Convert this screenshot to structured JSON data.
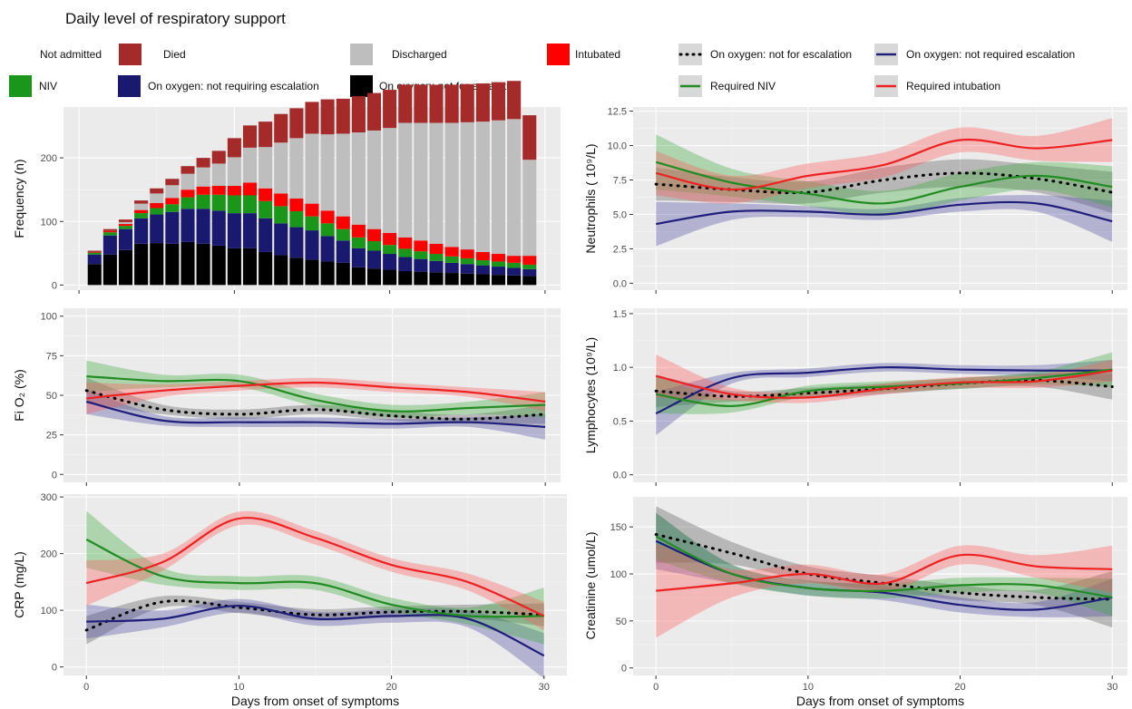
{
  "title": "Daily level of respiratory support",
  "colors": {
    "died": "#a52a2a",
    "discharged": "#bebebe",
    "intubated": "#ff0000",
    "niv": "#1a961a",
    "oxygen_not_requiring": "#191970",
    "oxygen_not_for_escalation": "#000000",
    "line_not_for_escalation": "#000000",
    "line_not_required": "#1f1f7a",
    "line_niv": "#228b22",
    "line_intubation": "#ee2222"
  },
  "legend_bars": [
    {
      "label": "Not admitted",
      "swatch": false,
      "color": ""
    },
    {
      "label": "Died",
      "swatch": true,
      "color": "#a52a2a"
    },
    {
      "label": "Discharged",
      "swatch": true,
      "color": "#bebebe"
    },
    {
      "label": "Intubated",
      "swatch": true,
      "color": "#ff0000"
    },
    {
      "label": "NIV",
      "swatch": true,
      "color": "#1a961a"
    },
    {
      "label": "On oxygen: not requiring escalation",
      "swatch": true,
      "color": "#191970"
    },
    {
      "label": "On oxygen: not for escalation",
      "swatch": true,
      "color": "#000000"
    }
  ],
  "legend_lines": [
    {
      "label": "On oxygen: not for escalation",
      "color": "#000000",
      "dotted": true
    },
    {
      "label": "On oxygen: not required escalation",
      "color": "#1f1f7a",
      "dotted": false
    },
    {
      "label": "Required NIV",
      "color": "#228b22",
      "dotted": false
    },
    {
      "label": "Required intubation",
      "color": "#ee2222",
      "dotted": false
    }
  ],
  "xlabel": "Days from onset of symptoms",
  "chart_data": [
    {
      "id": "frequency",
      "type": "bar",
      "stacked": true,
      "title": "",
      "ylabel": "Frequency (n)",
      "xlabel": "",
      "xlim": [
        -1,
        31
      ],
      "ylim": [
        -8,
        280
      ],
      "xticks": [
        0,
        10,
        20,
        30
      ],
      "show_xtick_labels": false,
      "yticks": [
        0,
        100,
        200
      ],
      "ytick_labels": [
        "0",
        "100",
        "200"
      ],
      "categories": [
        1,
        2,
        3,
        4,
        5,
        6,
        7,
        8,
        9,
        10,
        11,
        12,
        13,
        14,
        15,
        16,
        17,
        18,
        19,
        20,
        21,
        22,
        23,
        24,
        25,
        26,
        27,
        28,
        29
      ],
      "series": [
        {
          "name": "On oxygen: not for escalation",
          "color": "#000000",
          "values": [
            33,
            48,
            55,
            65,
            66,
            65,
            68,
            65,
            62,
            58,
            58,
            52,
            47,
            43,
            40,
            37,
            35,
            28,
            26,
            24,
            22,
            21,
            20,
            19,
            18,
            17,
            16,
            15,
            14
          ]
        },
        {
          "name": "On oxygen: not requiring escalation",
          "color": "#191970",
          "values": [
            15,
            30,
            33,
            40,
            45,
            50,
            52,
            55,
            55,
            55,
            55,
            53,
            50,
            48,
            46,
            40,
            35,
            30,
            28,
            25,
            22,
            20,
            18,
            16,
            15,
            14,
            13,
            12,
            11
          ]
        },
        {
          "name": "NIV",
          "color": "#1a961a",
          "values": [
            3,
            5,
            5,
            8,
            10,
            12,
            18,
            22,
            25,
            28,
            28,
            27,
            27,
            25,
            22,
            20,
            18,
            17,
            15,
            14,
            13,
            12,
            11,
            10,
            9,
            8,
            8,
            8,
            7
          ]
        },
        {
          "name": "Intubated",
          "color": "#ff0000",
          "values": [
            1,
            2,
            3,
            5,
            8,
            10,
            12,
            13,
            14,
            15,
            20,
            20,
            20,
            20,
            20,
            20,
            20,
            20,
            19,
            19,
            18,
            17,
            16,
            15,
            14,
            13,
            12,
            11,
            14
          ]
        },
        {
          "name": "Discharged",
          "color": "#bebebe",
          "values": [
            0,
            0,
            3,
            10,
            15,
            20,
            25,
            30,
            35,
            45,
            55,
            65,
            80,
            95,
            110,
            120,
            130,
            145,
            155,
            165,
            180,
            185,
            190,
            195,
            200,
            205,
            210,
            215,
            151
          ]
        },
        {
          "name": "Died",
          "color": "#a52a2a",
          "values": [
            2,
            3,
            4,
            5,
            8,
            10,
            12,
            15,
            20,
            30,
            35,
            40,
            45,
            47,
            50,
            55,
            55,
            57,
            59,
            60,
            60,
            60,
            60,
            60,
            60,
            60,
            60,
            60,
            70
          ]
        }
      ]
    },
    {
      "id": "neutrophils",
      "type": "line",
      "title": "",
      "ylabel": "Neutrophils ( 10⁹/L)",
      "xlabel": "",
      "xlim": [
        -1.5,
        31
      ],
      "ylim": [
        -0.5,
        12.8
      ],
      "xticks": [
        0,
        10,
        20,
        30
      ],
      "show_xtick_labels": false,
      "yticks": [
        0,
        2.5,
        5,
        7.5,
        10,
        12.5
      ],
      "ytick_labels": [
        "0.0",
        "2.5",
        "5.0",
        "7.5",
        "10.0",
        "12.5"
      ],
      "x": [
        0,
        5,
        10,
        15,
        20,
        25,
        30
      ],
      "series": [
        {
          "name": "On oxygen: not for escalation",
          "values": [
            7.2,
            6.8,
            6.6,
            7.5,
            8.0,
            7.6,
            6.6
          ],
          "band": [
            1.2,
            0.9,
            0.8,
            0.9,
            1.0,
            1.0,
            1.5
          ]
        },
        {
          "name": "On oxygen: not required escalation",
          "values": [
            4.3,
            5.2,
            5.2,
            5.0,
            5.7,
            5.8,
            4.5
          ],
          "band": [
            1.6,
            0.6,
            0.4,
            0.4,
            0.5,
            0.6,
            1.5
          ]
        },
        {
          "name": "Required NIV",
          "values": [
            8.8,
            7.3,
            6.5,
            5.8,
            7.0,
            7.8,
            7.0
          ],
          "band": [
            2.0,
            1.0,
            0.9,
            0.9,
            1.0,
            1.0,
            1.5
          ]
        },
        {
          "name": "Required intubation",
          "values": [
            8.0,
            6.8,
            7.8,
            8.6,
            10.4,
            9.8,
            10.4
          ],
          "band": [
            1.6,
            1.0,
            0.9,
            0.9,
            0.9,
            0.9,
            1.6
          ]
        }
      ]
    },
    {
      "id": "fio2",
      "type": "line",
      "title": "",
      "ylabel": "Fi O₂ (%)",
      "xlabel": "",
      "xlim": [
        -1.5,
        31
      ],
      "ylim": [
        -5,
        105
      ],
      "xticks": [
        0,
        10,
        20,
        30
      ],
      "show_xtick_labels": false,
      "yticks": [
        0,
        25,
        50,
        75,
        100
      ],
      "ytick_labels": [
        "0",
        "25",
        "50",
        "75",
        "100"
      ],
      "x": [
        0,
        5,
        10,
        15,
        20,
        25,
        30
      ],
      "series": [
        {
          "name": "On oxygen: not for escalation",
          "values": [
            53,
            41,
            38,
            41,
            37,
            35,
            38
          ],
          "band": [
            8,
            3,
            3,
            3,
            3,
            3,
            6
          ]
        },
        {
          "name": "On oxygen: not required escalation",
          "values": [
            46,
            34,
            33,
            33,
            32,
            33,
            30
          ],
          "band": [
            8,
            3,
            3,
            3,
            3,
            3,
            8
          ]
        },
        {
          "name": "Required NIV",
          "values": [
            62,
            59,
            59,
            47,
            40,
            42,
            44
          ],
          "band": [
            10,
            4,
            4,
            4,
            4,
            4,
            8
          ]
        },
        {
          "name": "Required intubation",
          "values": [
            48,
            53,
            56,
            58,
            55,
            52,
            46
          ],
          "band": [
            10,
            4,
            3,
            3,
            3,
            3,
            6
          ]
        }
      ]
    },
    {
      "id": "lymphocytes",
      "type": "line",
      "title": "",
      "ylabel": "Lymphocytes (10⁹/L)",
      "xlabel": "",
      "xlim": [
        -1.5,
        31
      ],
      "ylim": [
        -0.07,
        1.55
      ],
      "xticks": [
        0,
        10,
        20,
        30
      ],
      "show_xtick_labels": false,
      "yticks": [
        0,
        0.5,
        1.0,
        1.5
      ],
      "ytick_labels": [
        "0.0",
        "0.5",
        "1.0",
        "1.5"
      ],
      "x": [
        0,
        5,
        10,
        15,
        20,
        25,
        30
      ],
      "series": [
        {
          "name": "On oxygen: not for escalation",
          "values": [
            0.78,
            0.73,
            0.76,
            0.8,
            0.85,
            0.88,
            0.82
          ],
          "band": [
            0.15,
            0.05,
            0.05,
            0.05,
            0.05,
            0.06,
            0.12
          ]
        },
        {
          "name": "On oxygen: not required escalation",
          "values": [
            0.57,
            0.9,
            0.95,
            1.0,
            0.98,
            0.97,
            0.97
          ],
          "band": [
            0.2,
            0.05,
            0.04,
            0.04,
            0.04,
            0.05,
            0.1
          ]
        },
        {
          "name": "Required NIV",
          "values": [
            0.75,
            0.64,
            0.78,
            0.82,
            0.85,
            0.9,
            0.98
          ],
          "band": [
            0.18,
            0.06,
            0.05,
            0.05,
            0.05,
            0.06,
            0.16
          ]
        },
        {
          "name": "Required intubation",
          "values": [
            0.92,
            0.75,
            0.72,
            0.8,
            0.86,
            0.87,
            0.97
          ],
          "band": [
            0.2,
            0.06,
            0.05,
            0.05,
            0.05,
            0.06,
            0.1
          ]
        }
      ]
    },
    {
      "id": "crp",
      "type": "line",
      "title": "",
      "ylabel": "CRP (mg/L)",
      "xlabel": "Days from onset of symptoms",
      "xlim": [
        -1.5,
        31.5
      ],
      "ylim": [
        -15,
        305
      ],
      "xticks": [
        0,
        10,
        20,
        30
      ],
      "show_xtick_labels": true,
      "xtick_labels": [
        "0",
        "10",
        "20",
        "30"
      ],
      "yticks": [
        0,
        100,
        200,
        300
      ],
      "ytick_labels": [
        "0",
        "100",
        "200",
        "300"
      ],
      "x": [
        0,
        5,
        10,
        15,
        20,
        25,
        30
      ],
      "series": [
        {
          "name": "On oxygen: not for escalation",
          "values": [
            65,
            115,
            105,
            92,
            97,
            98,
            92
          ],
          "band": [
            25,
            10,
            10,
            10,
            10,
            12,
            20
          ]
        },
        {
          "name": "On oxygen: not required escalation",
          "values": [
            80,
            85,
            108,
            85,
            90,
            85,
            20
          ],
          "band": [
            30,
            15,
            12,
            12,
            12,
            15,
            40
          ]
        },
        {
          "name": "Required NIV",
          "values": [
            225,
            160,
            148,
            148,
            110,
            90,
            90
          ],
          "band": [
            50,
            15,
            12,
            12,
            12,
            15,
            50
          ]
        },
        {
          "name": "Required intubation",
          "values": [
            148,
            185,
            262,
            228,
            180,
            150,
            90
          ],
          "band": [
            40,
            15,
            12,
            12,
            12,
            15,
            25
          ]
        }
      ]
    },
    {
      "id": "creatinine",
      "type": "line",
      "title": "",
      "ylabel": "Creatinine (umol/L)",
      "xlabel": "Days from onset of symptoms",
      "xlim": [
        -1.5,
        31
      ],
      "ylim": [
        -8,
        182
      ],
      "xticks": [
        0,
        10,
        20,
        30
      ],
      "show_xtick_labels": true,
      "xtick_labels": [
        "0",
        "10",
        "20",
        "30"
      ],
      "yticks": [
        0,
        50,
        100,
        150
      ],
      "ytick_labels": [
        "0",
        "50",
        "100",
        "150"
      ],
      "x": [
        0,
        5,
        10,
        15,
        20,
        25,
        30
      ],
      "series": [
        {
          "name": "On oxygen: not for escalation",
          "values": [
            142,
            122,
            100,
            90,
            80,
            75,
            73
          ],
          "band": [
            30,
            12,
            8,
            8,
            8,
            8,
            30
          ]
        },
        {
          "name": "On oxygen: not required escalation",
          "values": [
            135,
            100,
            85,
            80,
            67,
            62,
            75
          ],
          "band": [
            30,
            10,
            8,
            8,
            8,
            8,
            20
          ]
        },
        {
          "name": "Required NIV",
          "values": [
            140,
            100,
            85,
            82,
            88,
            88,
            75
          ],
          "band": [
            25,
            10,
            8,
            8,
            8,
            8,
            20
          ]
        },
        {
          "name": "Required intubation",
          "values": [
            82,
            90,
            100,
            90,
            120,
            108,
            105
          ],
          "band": [
            50,
            15,
            10,
            10,
            10,
            12,
            25
          ]
        }
      ]
    }
  ]
}
